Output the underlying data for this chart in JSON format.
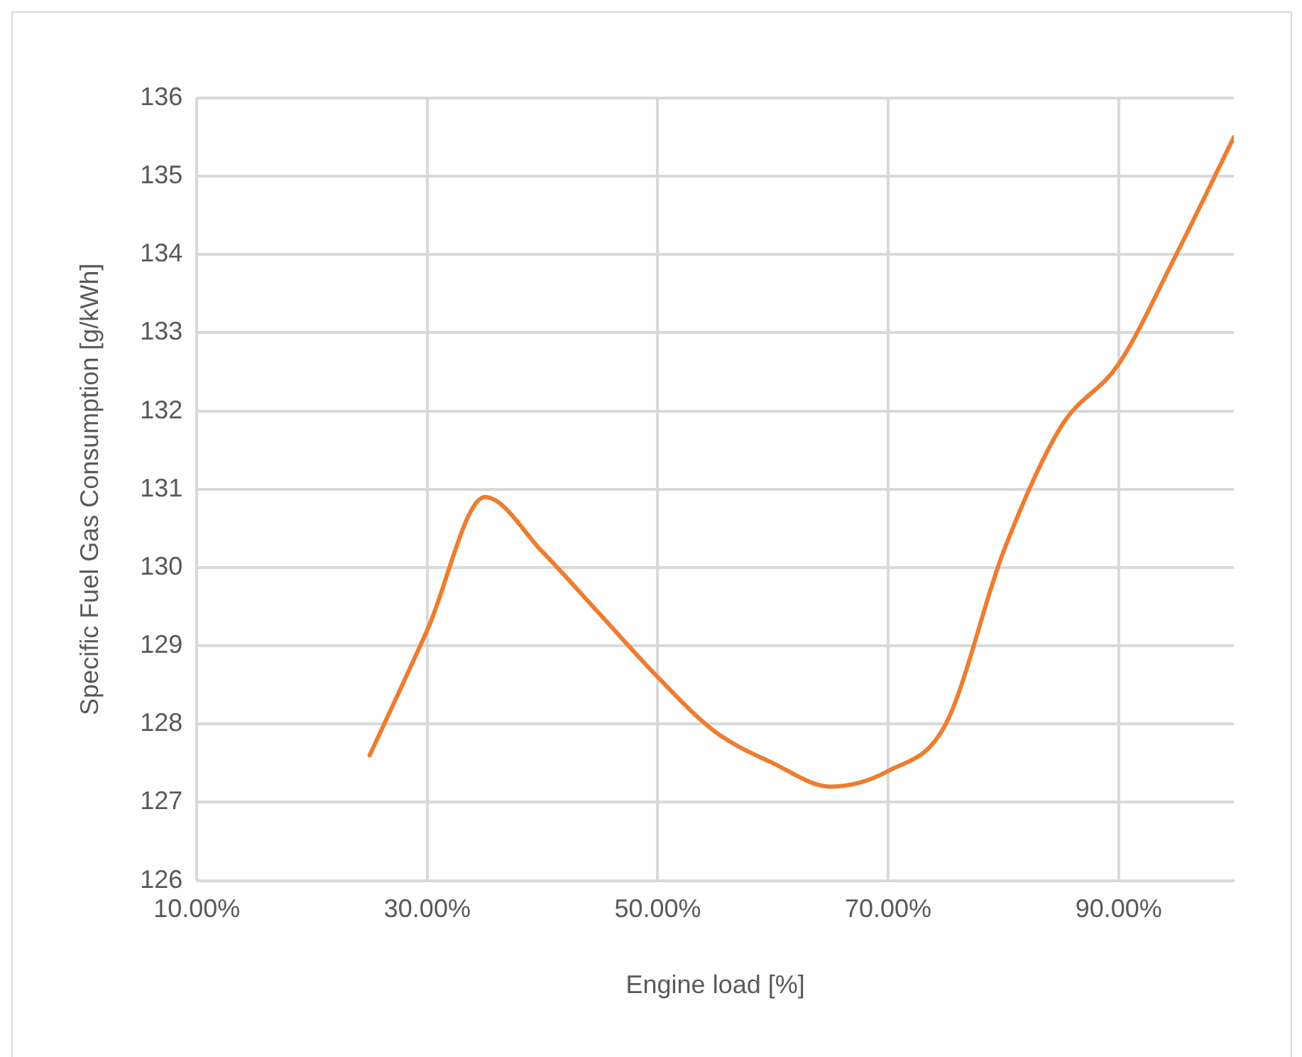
{
  "chart_data": {
    "type": "line",
    "xlabel": "Engine load [%]",
    "ylabel": "Specific Fuel Gas Consumption [g/kWh]",
    "x": [
      25,
      30,
      35,
      40,
      45,
      50,
      55,
      60,
      65,
      70,
      75,
      80,
      85,
      90,
      95,
      100
    ],
    "series": [
      {
        "color": "#ed7d31",
        "values": [
          127.6,
          129.2,
          130.9,
          130.2,
          129.4,
          128.6,
          127.9,
          127.5,
          127.2,
          127.4,
          128.0,
          130.2,
          131.8,
          132.6,
          134.0,
          135.5
        ]
      }
    ],
    "xlim": [
      10,
      100
    ],
    "xticks": [
      {
        "value": 10,
        "label": "10.00%"
      },
      {
        "value": 30,
        "label": "30.00%"
      },
      {
        "value": 50,
        "label": "50.00%"
      },
      {
        "value": 70,
        "label": "70.00%"
      },
      {
        "value": 90,
        "label": "90.00%"
      }
    ],
    "ylim": [
      126,
      136
    ],
    "yticks": [
      126,
      127,
      128,
      129,
      130,
      131,
      132,
      133,
      134,
      135,
      136
    ],
    "grid": true,
    "legend": false,
    "marker": "none",
    "line_style": "solid"
  }
}
